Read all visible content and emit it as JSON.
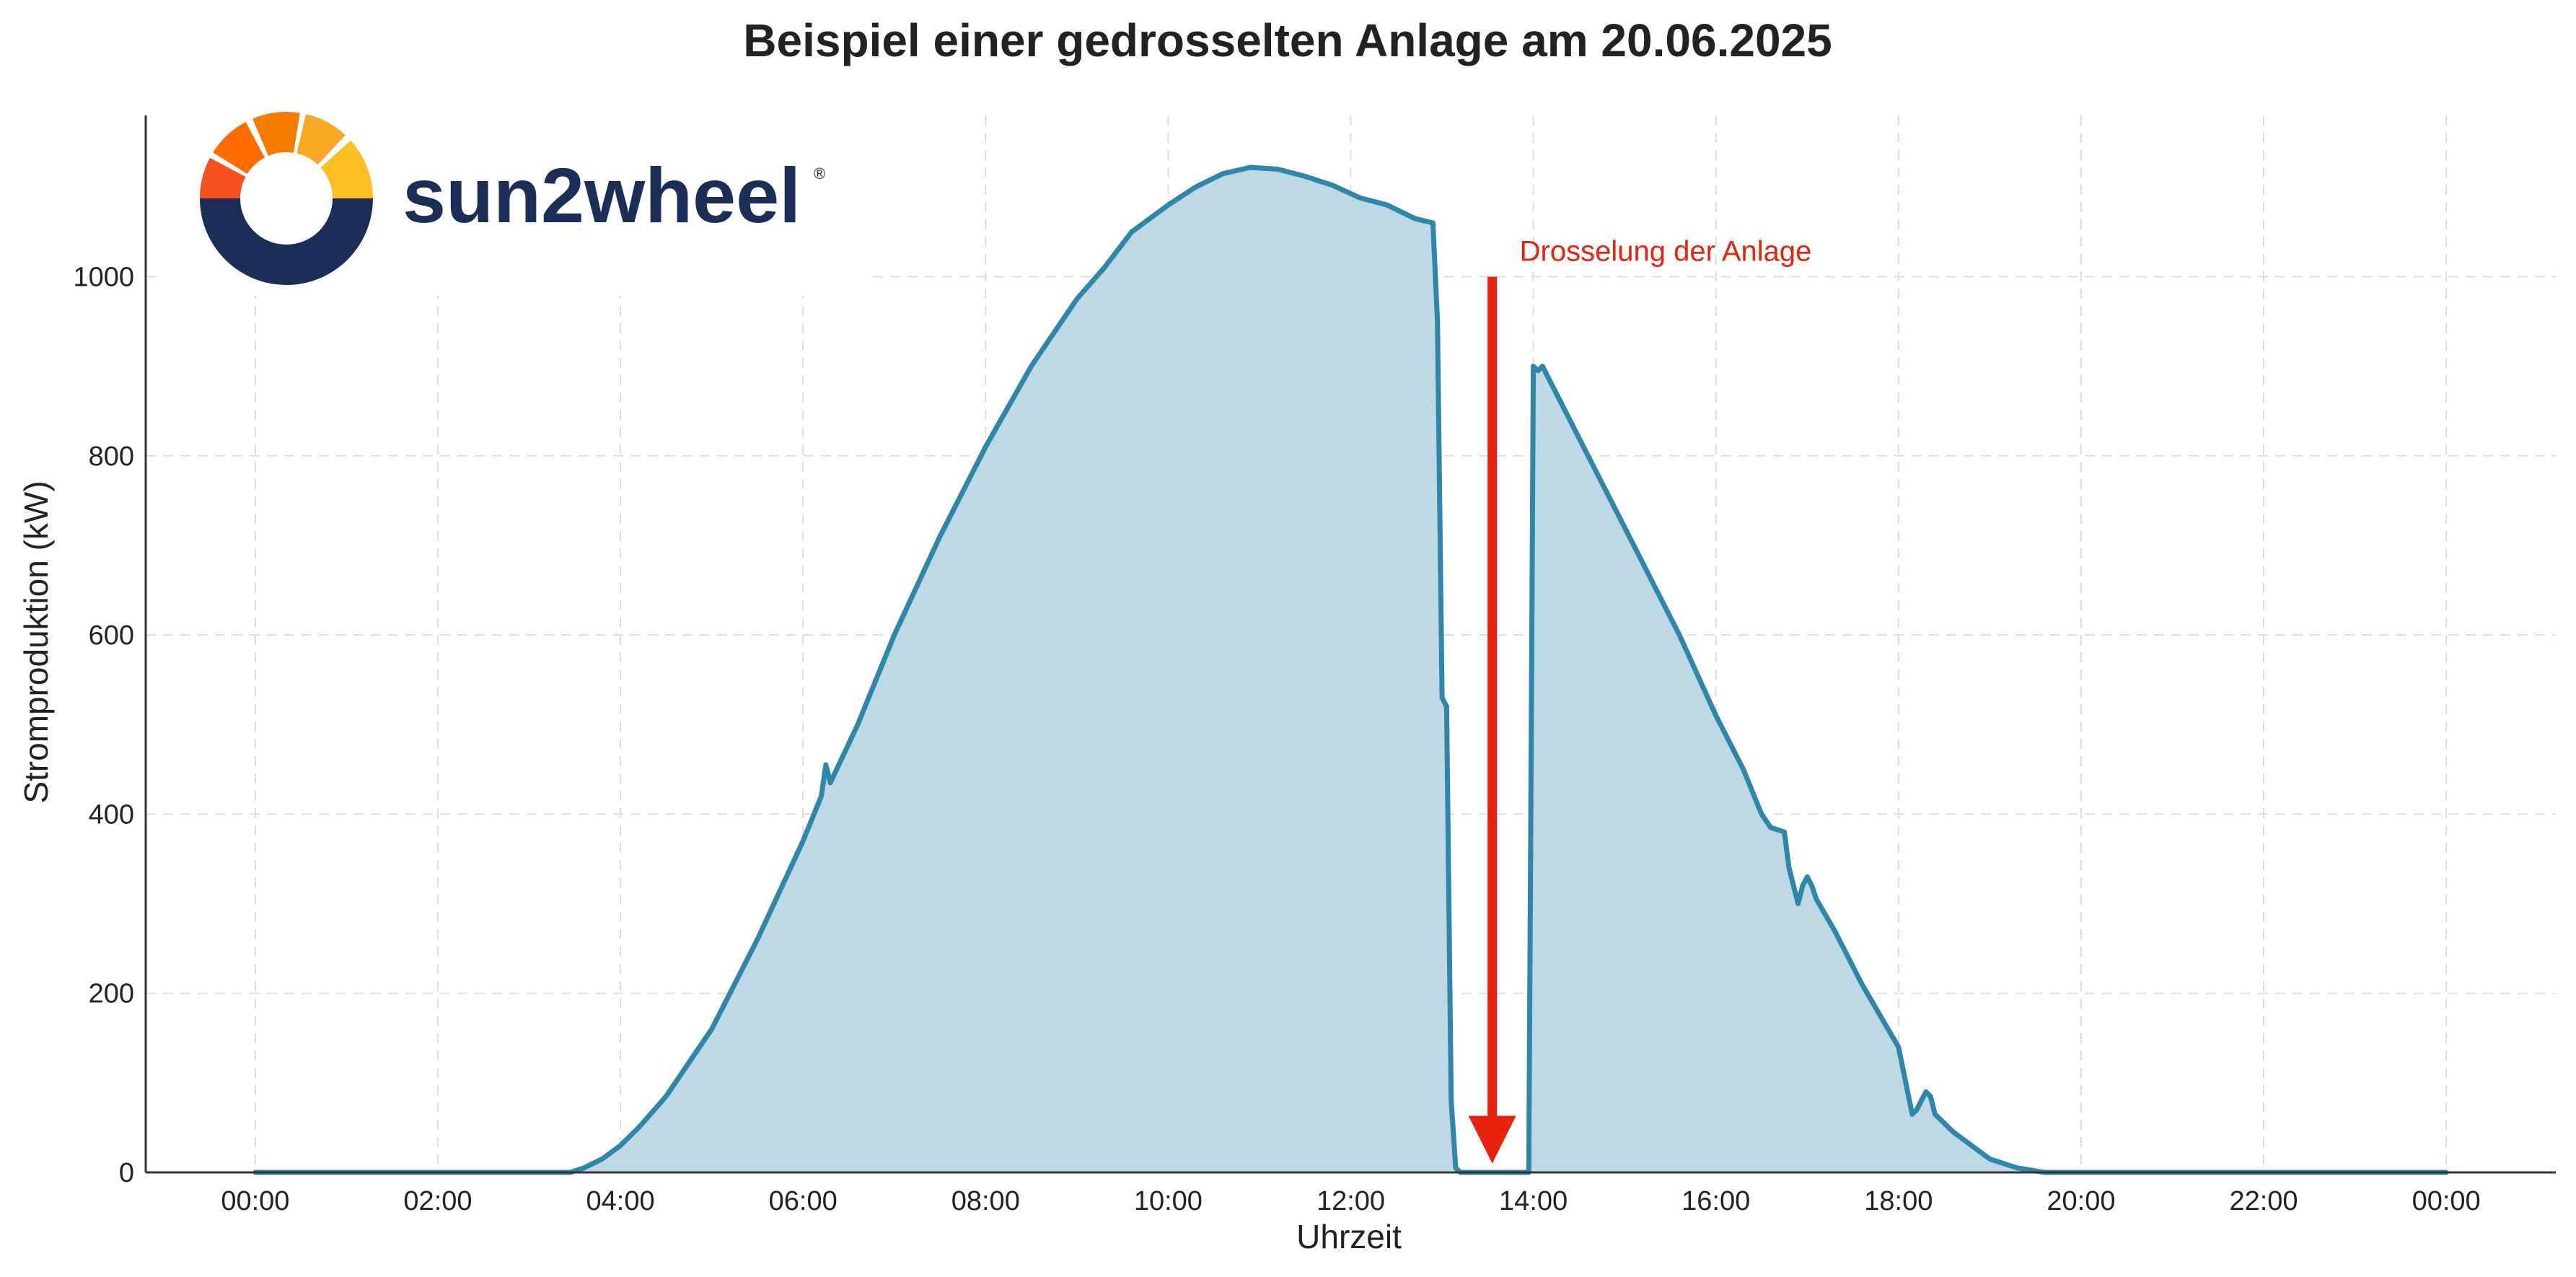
{
  "chart_data": {
    "type": "area",
    "title": "Beispiel einer gedrosselten Anlage am 20.06.2025",
    "xlabel": "Uhrzeit",
    "ylabel": "Stromproduktion (kW)",
    "xlim": [
      -1.2,
      25.2
    ],
    "ylim": [
      0,
      1180
    ],
    "grid": true,
    "x_ticks": [
      0,
      2,
      4,
      6,
      8,
      10,
      12,
      14,
      16,
      18,
      20,
      22,
      24
    ],
    "x_tick_labels": [
      "00:00",
      "02:00",
      "04:00",
      "06:00",
      "08:00",
      "10:00",
      "12:00",
      "14:00",
      "16:00",
      "18:00",
      "20:00",
      "22:00",
      "00:00"
    ],
    "y_ticks": [
      0,
      200,
      400,
      600,
      800,
      1000
    ],
    "y_tick_labels": [
      "0",
      "200",
      "400",
      "600",
      "800",
      "1000"
    ],
    "series": [
      {
        "color": "#2e86ab",
        "fill": "#bfd9e4",
        "x": [
          0,
          3.45,
          3.6,
          3.8,
          4.0,
          4.2,
          4.5,
          5.0,
          5.5,
          6.0,
          6.2,
          6.25,
          6.3,
          6.6,
          7.0,
          7.5,
          8.0,
          8.5,
          9.0,
          9.3,
          9.6,
          10.0,
          10.3,
          10.6,
          10.9,
          11.2,
          11.5,
          11.8,
          12.1,
          12.4,
          12.7,
          12.9,
          12.95,
          13.0,
          13.05,
          13.1,
          13.15,
          13.2,
          13.5,
          13.95,
          14.0,
          14.05,
          14.1,
          14.2,
          14.4,
          14.6,
          14.8,
          15.0,
          15.3,
          15.6,
          16.0,
          16.3,
          16.5,
          16.6,
          16.75,
          16.8,
          16.9,
          16.95,
          17.0,
          17.05,
          17.1,
          17.3,
          17.6,
          18.0,
          18.15,
          18.2,
          18.3,
          18.35,
          18.4,
          18.5,
          18.6,
          18.8,
          19.0,
          19.3,
          19.6,
          20.0,
          24.0
        ],
        "y": [
          0,
          0,
          5,
          15,
          30,
          50,
          85,
          160,
          260,
          370,
          420,
          455,
          435,
          500,
          600,
          710,
          810,
          900,
          975,
          1010,
          1050,
          1080,
          1100,
          1115,
          1122,
          1120,
          1112,
          1102,
          1088,
          1080,
          1065,
          1060,
          950,
          530,
          520,
          80,
          5,
          0,
          0,
          0,
          900,
          895,
          900,
          880,
          840,
          800,
          760,
          720,
          660,
          600,
          510,
          450,
          400,
          385,
          380,
          340,
          300,
          320,
          330,
          320,
          305,
          270,
          210,
          140,
          65,
          70,
          90,
          85,
          65,
          55,
          45,
          30,
          15,
          5,
          0,
          0,
          0
        ]
      }
    ],
    "annotations": [
      {
        "text": "Drosselung der Anlage",
        "color": "#e8220c",
        "arrow_from": [
          13.55,
          1000
        ],
        "arrow_to": [
          13.55,
          10
        ]
      }
    ],
    "logo": {
      "text": "sun2wheel",
      "reg": "®",
      "text_color": "#1c2d58",
      "ring_color": "#1c2d58",
      "segment_colors": [
        "#fbbf24",
        "#f9a825",
        "#f57c00",
        "#ff6d00",
        "#f4511e"
      ]
    }
  }
}
